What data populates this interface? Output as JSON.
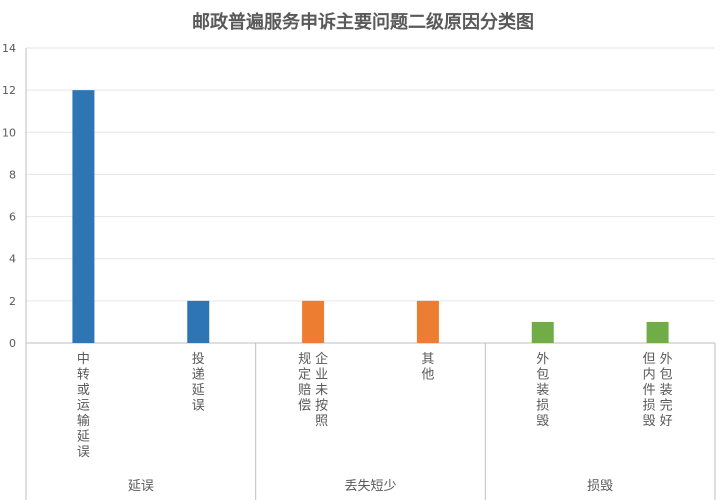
{
  "chart_data": {
    "type": "bar",
    "title": "邮政普遍服务申诉主要问题二级原因分类图",
    "xlabel": "",
    "ylabel": "",
    "ylim": [
      0,
      14
    ],
    "yticks": [
      0,
      2,
      4,
      6,
      8,
      10,
      12,
      14
    ],
    "grid": true,
    "legend": "none",
    "groups": [
      {
        "label": "延误",
        "color": "#2e75b6",
        "categories": [
          {
            "label": "中转或运输延误",
            "columns": [
              "中转或运输延误"
            ],
            "value": 12
          },
          {
            "label": "投递延误",
            "columns": [
              "投递延误"
            ],
            "value": 2
          }
        ]
      },
      {
        "label": "丢失短少",
        "color": "#ed7d31",
        "categories": [
          {
            "label": "企业未按照规定赔偿",
            "columns": [
              "企业未按照",
              "规定赔偿"
            ],
            "value": 2
          },
          {
            "label": "其他",
            "columns": [
              "其他"
            ],
            "value": 2
          }
        ]
      },
      {
        "label": "损毁",
        "color": "#70ad47",
        "categories": [
          {
            "label": "外包装损毁",
            "columns": [
              "外包装损毁"
            ],
            "value": 1
          },
          {
            "label": "外包装完好但内件损毁",
            "columns": [
              "外包装完好",
              "但内件损毁"
            ],
            "value": 1
          }
        ]
      }
    ]
  }
}
